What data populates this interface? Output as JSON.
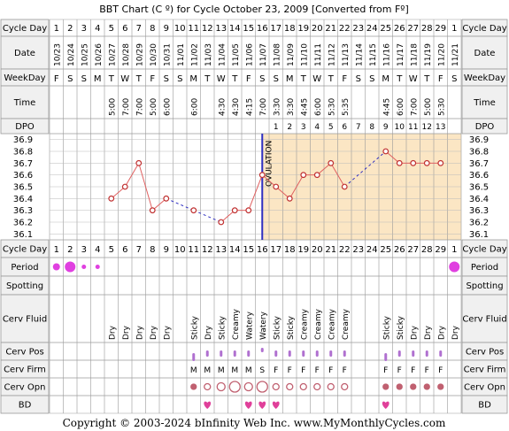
{
  "title": "BBT Chart (C º) for Cycle October 23, 2009  [Converted from Fº]",
  "footer": "Copyright © 2003-2024 bInfinity Web Inc.    www.MyMonthlyCycles.com",
  "row_labels": {
    "cycle_day": "Cycle Day",
    "date": "Date",
    "weekday": "WeekDay",
    "time": "Time",
    "dpo": "DPO",
    "period": "Period",
    "spotting": "Spotting",
    "cerv_fluid": "Cerv Fluid",
    "cerv_pos": "Cerv Pos",
    "cerv_firm": "Cerv Firm",
    "cerv_opn": "Cerv Opn",
    "bd": "BD"
  },
  "ovulation_label": "OVULATION",
  "colors": {
    "temp_line": "#e06060",
    "temp_point": "#c03030",
    "coverline": "#3030c0",
    "post_ovulation_bg": "#fbe6c4",
    "pre_ovulation_bg": "#ffffff",
    "period": "#e040e0",
    "cerv_pos": "#b070d0",
    "cerv_firm": "#b070d0",
    "cerv_opn": "#c06070",
    "bd": "#e0409a",
    "label_bg": "#f0f0f0"
  },
  "days": [
    {
      "day": "1",
      "date": "10/23",
      "weekday": "F",
      "time": "",
      "dpo": "",
      "period": "medium",
      "fluid": "",
      "pos": "",
      "firm": "",
      "opn": "",
      "bd": false
    },
    {
      "day": "2",
      "date": "10/24",
      "weekday": "S",
      "time": "",
      "dpo": "",
      "period": "heavy",
      "fluid": "",
      "pos": "",
      "firm": "",
      "opn": "",
      "bd": false
    },
    {
      "day": "3",
      "date": "10/25",
      "weekday": "S",
      "time": "",
      "dpo": "",
      "period": "light",
      "fluid": "",
      "pos": "",
      "firm": "",
      "opn": "",
      "bd": false
    },
    {
      "day": "4",
      "date": "10/26",
      "weekday": "M",
      "time": "",
      "dpo": "",
      "period": "light",
      "fluid": "",
      "pos": "",
      "firm": "",
      "opn": "",
      "bd": false
    },
    {
      "day": "5",
      "date": "10/27",
      "weekday": "T",
      "time": "5:00",
      "dpo": "",
      "period": "",
      "fluid": "Dry",
      "pos": "",
      "firm": "",
      "opn": "",
      "bd": false
    },
    {
      "day": "6",
      "date": "10/28",
      "weekday": "W",
      "time": "7:00",
      "dpo": "",
      "period": "",
      "fluid": "Dry",
      "pos": "",
      "firm": "",
      "opn": "",
      "bd": false
    },
    {
      "day": "7",
      "date": "10/29",
      "weekday": "T",
      "time": "7:00",
      "dpo": "",
      "period": "",
      "fluid": "Dry",
      "pos": "",
      "firm": "",
      "opn": "",
      "bd": false
    },
    {
      "day": "8",
      "date": "10/30",
      "weekday": "F",
      "time": "5:00",
      "dpo": "",
      "period": "",
      "fluid": "Dry",
      "pos": "",
      "firm": "",
      "opn": "",
      "bd": false
    },
    {
      "day": "9",
      "date": "10/31",
      "weekday": "S",
      "time": "6:00",
      "dpo": "",
      "period": "",
      "fluid": "Dry",
      "pos": "",
      "firm": "",
      "opn": "",
      "bd": false
    },
    {
      "day": "10",
      "date": "11/01",
      "weekday": "S",
      "time": "",
      "dpo": "",
      "period": "",
      "fluid": "",
      "pos": "",
      "firm": "",
      "opn": "",
      "bd": false
    },
    {
      "day": "11",
      "date": "11/02",
      "weekday": "M",
      "time": "6:00",
      "dpo": "",
      "period": "",
      "fluid": "Sticky",
      "pos": "low",
      "firm": "M",
      "opn": "closed",
      "bd": false
    },
    {
      "day": "12",
      "date": "11/03",
      "weekday": "T",
      "time": "",
      "dpo": "",
      "period": "",
      "fluid": "Dry",
      "pos": "med",
      "firm": "M",
      "opn": "small",
      "bd": true
    },
    {
      "day": "13",
      "date": "11/04",
      "weekday": "W",
      "time": "4:30",
      "dpo": "",
      "period": "",
      "fluid": "Sticky",
      "pos": "med",
      "firm": "M",
      "opn": "medium",
      "bd": false
    },
    {
      "day": "14",
      "date": "11/05",
      "weekday": "T",
      "time": "4:30",
      "dpo": "",
      "period": "",
      "fluid": "Creamy",
      "pos": "med",
      "firm": "M",
      "opn": "large",
      "bd": false
    },
    {
      "day": "15",
      "date": "11/06",
      "weekday": "F",
      "time": "4:15",
      "dpo": "",
      "period": "",
      "fluid": "Watery",
      "pos": "med",
      "firm": "M",
      "opn": "medium",
      "bd": true
    },
    {
      "day": "16",
      "date": "11/07",
      "weekday": "S",
      "time": "7:00",
      "dpo": "",
      "period": "",
      "fluid": "Watery",
      "pos": "high",
      "firm": "S",
      "opn": "large",
      "bd": true
    },
    {
      "day": "17",
      "date": "11/08",
      "weekday": "S",
      "time": "3:30",
      "dpo": "1",
      "period": "",
      "fluid": "Sticky",
      "pos": "med",
      "firm": "F",
      "opn": "small",
      "bd": true
    },
    {
      "day": "18",
      "date": "11/09",
      "weekday": "M",
      "time": "3:30",
      "dpo": "2",
      "period": "",
      "fluid": "Sticky",
      "pos": "med",
      "firm": "F",
      "opn": "small",
      "bd": false
    },
    {
      "day": "19",
      "date": "11/10",
      "weekday": "T",
      "time": "4:45",
      "dpo": "3",
      "period": "",
      "fluid": "Creamy",
      "pos": "med",
      "firm": "F",
      "opn": "small",
      "bd": false
    },
    {
      "day": "20",
      "date": "11/11",
      "weekday": "W",
      "time": "6:00",
      "dpo": "4",
      "period": "",
      "fluid": "Creamy",
      "pos": "med",
      "firm": "F",
      "opn": "small",
      "bd": false
    },
    {
      "day": "21",
      "date": "11/12",
      "weekday": "T",
      "time": "5:30",
      "dpo": "5",
      "period": "",
      "fluid": "Creamy",
      "pos": "med",
      "firm": "F",
      "opn": "small",
      "bd": false
    },
    {
      "day": "22",
      "date": "11/13",
      "weekday": "F",
      "time": "5:35",
      "dpo": "6",
      "period": "",
      "fluid": "Creamy",
      "pos": "med",
      "firm": "F",
      "opn": "small",
      "bd": false
    },
    {
      "day": "23",
      "date": "11/14",
      "weekday": "S",
      "time": "",
      "dpo": "7",
      "period": "",
      "fluid": "",
      "pos": "",
      "firm": "",
      "opn": "",
      "bd": false
    },
    {
      "day": "24",
      "date": "11/15",
      "weekday": "S",
      "time": "",
      "dpo": "8",
      "period": "",
      "fluid": "",
      "pos": "",
      "firm": "",
      "opn": "",
      "bd": false
    },
    {
      "day": "25",
      "date": "11/16",
      "weekday": "M",
      "time": "4:45",
      "dpo": "9",
      "period": "",
      "fluid": "Sticky",
      "pos": "low",
      "firm": "F",
      "opn": "closed",
      "bd": true
    },
    {
      "day": "26",
      "date": "11/17",
      "weekday": "T",
      "time": "6:00",
      "dpo": "10",
      "period": "",
      "fluid": "Sticky",
      "pos": "med",
      "firm": "F",
      "opn": "closed",
      "bd": false
    },
    {
      "day": "27",
      "date": "11/18",
      "weekday": "W",
      "time": "7:00",
      "dpo": "11",
      "period": "",
      "fluid": "Dry",
      "pos": "med",
      "firm": "F",
      "opn": "closed",
      "bd": false
    },
    {
      "day": "28",
      "date": "11/19",
      "weekday": "T",
      "time": "5:00",
      "dpo": "12",
      "period": "",
      "fluid": "Dry",
      "pos": "med",
      "firm": "F",
      "opn": "closed",
      "bd": false
    },
    {
      "day": "29",
      "date": "11/20",
      "weekday": "F",
      "time": "5:30",
      "dpo": "13",
      "period": "",
      "fluid": "Dry",
      "pos": "med",
      "firm": "F",
      "opn": "closed",
      "bd": false
    },
    {
      "day": "1",
      "date": "11/21",
      "weekday": "S",
      "time": "",
      "dpo": "",
      "period": "heavy",
      "fluid": "Dry",
      "pos": "",
      "firm": "",
      "opn": "",
      "bd": false
    }
  ],
  "chart_data": {
    "type": "line",
    "title": "BBT Chart (C º) for Cycle October 23, 2009  [Converted from Fº]",
    "xlabel": "Cycle Day",
    "ylabel": "",
    "ylim": [
      36.05,
      36.95
    ],
    "y_ticks": [
      "36.9",
      "36.8",
      "36.7",
      "36.6",
      "36.5",
      "36.4",
      "36.3",
      "36.2",
      "36.1"
    ],
    "ovulation_day": 16,
    "series": [
      {
        "x": [
          5,
          6,
          7,
          8,
          9,
          11,
          13,
          14,
          15,
          16,
          17,
          18,
          19,
          20,
          21,
          22,
          25,
          26,
          27,
          28,
          29
        ],
        "values": [
          36.4,
          36.5,
          36.7,
          36.3,
          36.4,
          36.3,
          36.2,
          36.3,
          36.3,
          36.6,
          36.5,
          36.4,
          36.6,
          36.6,
          36.7,
          36.5,
          36.8,
          36.7,
          36.7,
          36.7,
          36.7
        ]
      }
    ],
    "dashed_gaps": [
      [
        9,
        11
      ],
      [
        11,
        13
      ],
      [
        22,
        25
      ]
    ],
    "grid": true
  }
}
